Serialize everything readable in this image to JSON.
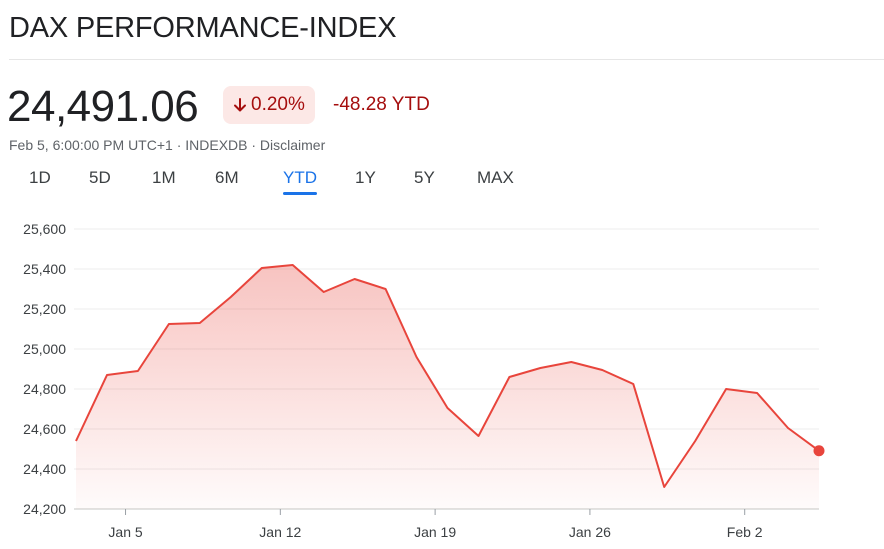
{
  "header": {
    "title": "DAX PERFORMANCE-INDEX"
  },
  "quote": {
    "price": "24,491.06",
    "change_percent": "0.20%",
    "change_direction": "down",
    "ytd_change": "-48.28 YTD",
    "meta": "Feb 5, 6:00:00 PM UTC+1 · INDEXDB · Disclaimer"
  },
  "tabs": [
    {
      "label": "1D"
    },
    {
      "label": "5D"
    },
    {
      "label": "1M"
    },
    {
      "label": "6M"
    },
    {
      "label": "YTD",
      "active": true
    },
    {
      "label": "1Y"
    },
    {
      "label": "5Y"
    },
    {
      "label": "MAX"
    }
  ],
  "colors": {
    "line": "#e8453c",
    "negative_text": "#a50e0e",
    "negative_bg": "#fce8e6",
    "active_tab": "#1a73e8"
  },
  "chart_data": {
    "type": "area",
    "title": "",
    "xlabel": "",
    "ylabel": "",
    "x": [
      "2025-01-02",
      "2025-01-03",
      "2025-01-06",
      "2025-01-07",
      "2025-01-08",
      "2025-01-09",
      "2025-01-10",
      "2025-01-13",
      "2025-01-14",
      "2025-01-15",
      "2025-01-16",
      "2025-01-17",
      "2025-01-20",
      "2025-01-21",
      "2025-01-22",
      "2025-01-23",
      "2025-01-24",
      "2025-01-27",
      "2025-01-28",
      "2025-01-29",
      "2025-01-30",
      "2025-01-31",
      "2025-02-03",
      "2025-02-04",
      "2025-02-05"
    ],
    "x_ticks": [
      {
        "label": "Jan 5",
        "index": 1.6
      },
      {
        "label": "Jan 12",
        "index": 6.6
      },
      {
        "label": "Jan 19",
        "index": 11.6
      },
      {
        "label": "Jan 26",
        "index": 16.6
      },
      {
        "label": "Feb 2",
        "index": 21.6
      }
    ],
    "series": [
      {
        "values": [
          24540,
          24870,
          24890,
          25125,
          25130,
          25260,
          25405,
          25420,
          25285,
          25350,
          25300,
          24960,
          24705,
          24565,
          24860,
          24905,
          24935,
          24895,
          24825,
          24310,
          24540,
          24800,
          24780,
          24605,
          24491.06
        ]
      }
    ],
    "y_ticks": [
      "25,600",
      "25,400",
      "25,200",
      "25,000",
      "24,800",
      "24,600",
      "24,400",
      "24,200"
    ],
    "ylim": [
      24200,
      25600
    ],
    "grid": true,
    "last_point_marker": true
  }
}
